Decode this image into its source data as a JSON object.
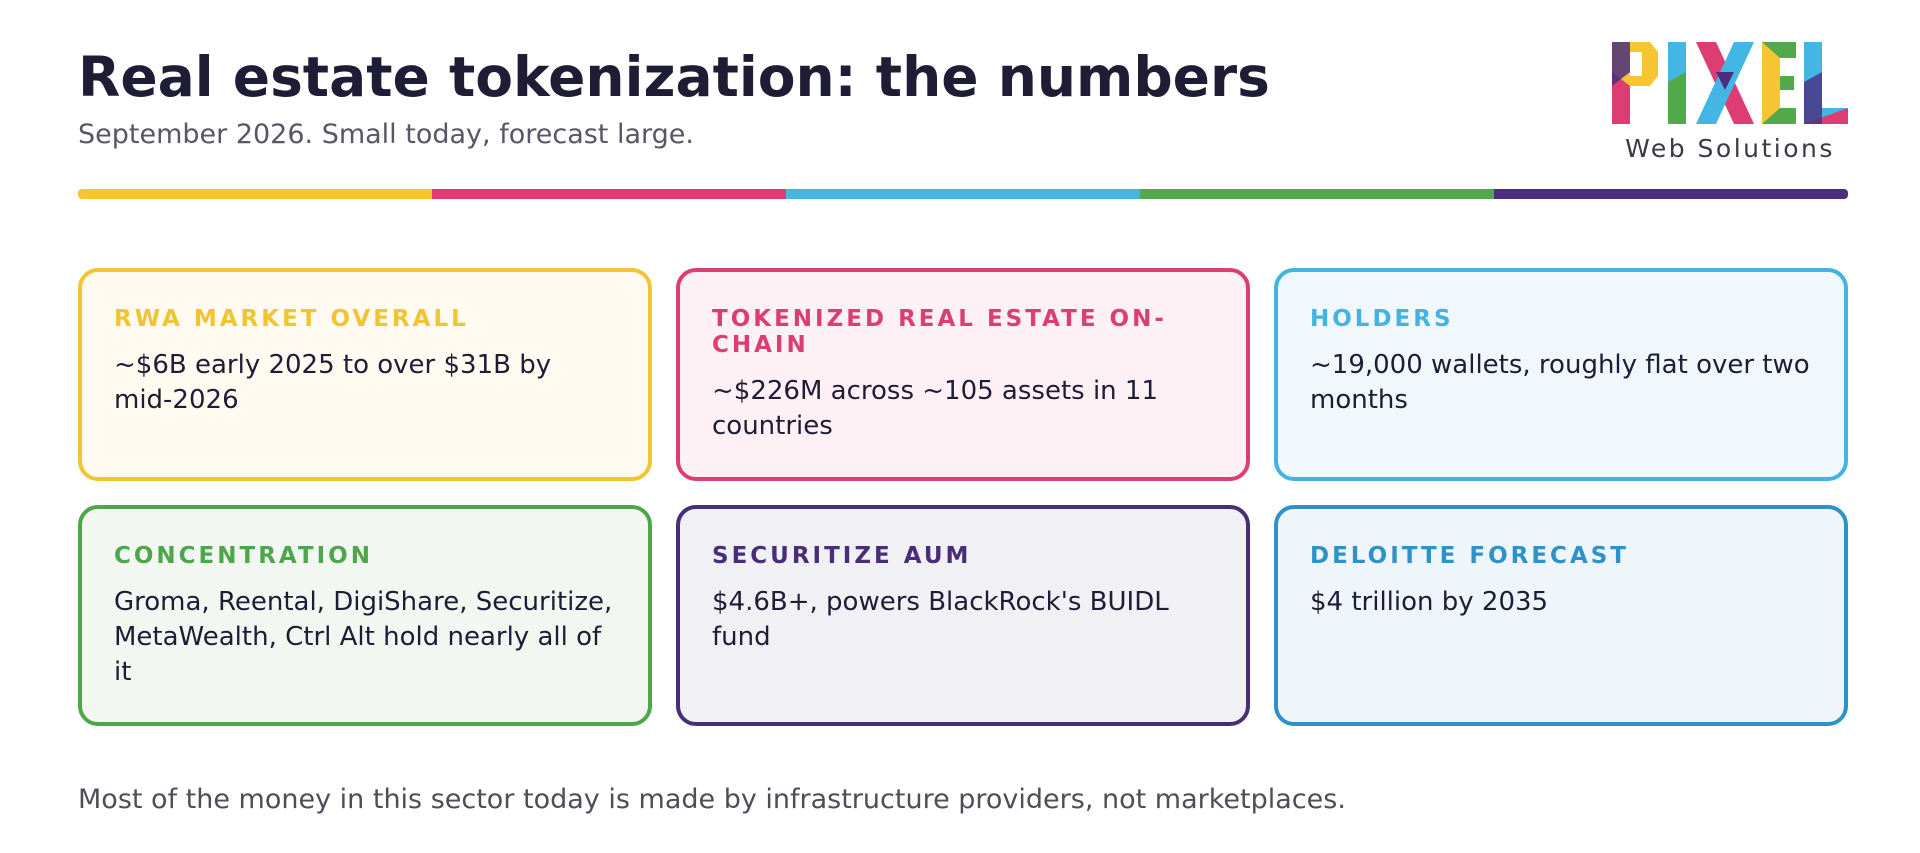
{
  "header": {
    "title": "Real estate tokenization: the numbers",
    "subtitle": "September 2026. Small today, forecast large."
  },
  "logo": {
    "wordmark": "PIXEL",
    "tagline": "Web Solutions",
    "colors": [
      "#f7c531",
      "#de3d72",
      "#43b6e4",
      "#51a94c",
      "#4b2e7e"
    ]
  },
  "rule_colors": [
    "#f7c531",
    "#de3d72",
    "#43b6e4",
    "#51a94c",
    "#4b2e7e"
  ],
  "cards": [
    {
      "label": "RWA MARKET OVERALL",
      "text": "~$6B early 2025 to over $31B by mid-2026",
      "accent": "#f2c433",
      "label_color": "#f2c433",
      "bg": "#fffbf0"
    },
    {
      "label": "TOKENIZED REAL ESTATE ON-CHAIN",
      "text": "~$226M across ~105 assets in 11 countries",
      "accent": "#db3f72",
      "label_color": "#db3f72",
      "bg": "#fdf1f5"
    },
    {
      "label": "HOLDERS",
      "text": "~19,000 wallets, roughly flat over two months",
      "accent": "#43b3df",
      "label_color": "#43b3df",
      "bg": "#f0f8fc"
    },
    {
      "label": "CONCENTRATION",
      "text": "Groma, Reental, DigiShare, Securitize, MetaWealth, Ctrl Alt hold nearly all of it",
      "accent": "#4ea64a",
      "label_color": "#4ea64a",
      "bg": "#f2f8f1"
    },
    {
      "label": "SECURITIZE AUM",
      "text": "$4.6B+, powers BlackRock's BUIDL fund",
      "accent": "#4a2d79",
      "label_color": "#4a2d79",
      "bg": "#f1f0f5"
    },
    {
      "label": "DELOITTE FORECAST",
      "text": "$4 trillion by 2035",
      "accent": "#2e92c8",
      "label_color": "#2e92c8",
      "bg": "#eff6fb"
    }
  ],
  "footer": {
    "text": "Most of the money in this sector today is made by infrastructure providers, not marketplaces."
  }
}
